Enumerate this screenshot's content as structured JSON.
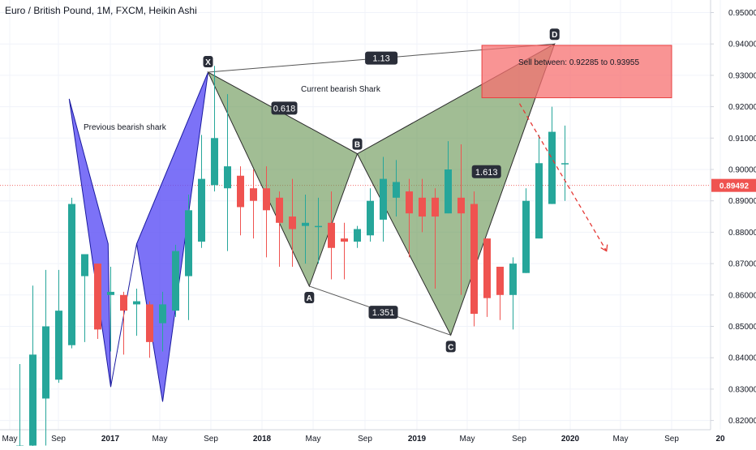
{
  "chart_data": {
    "type": "candlestick",
    "title": "Euro / British Pound, 1M, FXCM, Heikin Ashi",
    "x_labels": [
      "May",
      "Sep",
      "2017",
      "May",
      "Sep",
      "2018",
      "May",
      "Sep",
      "2019",
      "May",
      "Sep",
      "2020",
      "May",
      "Sep",
      "20"
    ],
    "y_labels": [
      "0.95000",
      "0.94000",
      "0.93000",
      "0.92000",
      "0.91000",
      "0.90000",
      "0.89000",
      "0.88000",
      "0.87000",
      "0.86000",
      "0.85000",
      "0.84000",
      "0.83000",
      "0.82000"
    ],
    "ylim": [
      0.8165,
      0.9535
    ],
    "current_price": 0.89492,
    "current_price_label": "0.89492",
    "candles": [
      {
        "t": 0,
        "o": 0.8075,
        "h": 0.838,
        "l": 0.803,
        "c": 0.812
      },
      {
        "t": 1,
        "o": 0.812,
        "h": 0.863,
        "l": 0.811,
        "c": 0.841
      },
      {
        "t": 2,
        "o": 0.827,
        "h": 0.868,
        "l": 0.812,
        "c": 0.85
      },
      {
        "t": 3,
        "o": 0.833,
        "h": 0.868,
        "l": 0.832,
        "c": 0.855
      },
      {
        "t": 4,
        "o": 0.844,
        "h": 0.891,
        "l": 0.843,
        "c": 0.889
      },
      {
        "t": 5,
        "o": 0.866,
        "h": 0.872,
        "l": 0.845,
        "c": 0.873
      },
      {
        "t": 6,
        "o": 0.87,
        "h": 0.87,
        "l": 0.846,
        "c": 0.849
      },
      {
        "t": 7,
        "o": 0.86,
        "h": 0.869,
        "l": 0.842,
        "c": 0.861
      },
      {
        "t": 8,
        "o": 0.86,
        "h": 0.861,
        "l": 0.841,
        "c": 0.855
      },
      {
        "t": 9,
        "o": 0.857,
        "h": 0.862,
        "l": 0.847,
        "c": 0.858
      },
      {
        "t": 10,
        "o": 0.857,
        "h": 0.858,
        "l": 0.84,
        "c": 0.845
      },
      {
        "t": 11,
        "o": 0.851,
        "h": 0.861,
        "l": 0.842,
        "c": 0.857
      },
      {
        "t": 12,
        "o": 0.855,
        "h": 0.876,
        "l": 0.853,
        "c": 0.874
      },
      {
        "t": 13,
        "o": 0.866,
        "h": 0.892,
        "l": 0.852,
        "c": 0.887
      },
      {
        "t": 14,
        "o": 0.877,
        "h": 0.911,
        "l": 0.875,
        "c": 0.897
      },
      {
        "t": 15,
        "o": 0.895,
        "h": 0.933,
        "l": 0.893,
        "c": 0.91
      },
      {
        "t": 16,
        "o": 0.894,
        "h": 0.924,
        "l": 0.874,
        "c": 0.901
      },
      {
        "t": 17,
        "o": 0.898,
        "h": 0.901,
        "l": 0.879,
        "c": 0.888
      },
      {
        "t": 18,
        "o": 0.894,
        "h": 0.9,
        "l": 0.878,
        "c": 0.89
      },
      {
        "t": 19,
        "o": 0.894,
        "h": 0.901,
        "l": 0.872,
        "c": 0.887
      },
      {
        "t": 20,
        "o": 0.891,
        "h": 0.893,
        "l": 0.869,
        "c": 0.883
      },
      {
        "t": 21,
        "o": 0.885,
        "h": 0.897,
        "l": 0.869,
        "c": 0.881
      },
      {
        "t": 22,
        "o": 0.882,
        "h": 0.892,
        "l": 0.87,
        "c": 0.883
      },
      {
        "t": 23,
        "o": 0.882,
        "h": 0.891,
        "l": 0.87,
        "c": 0.882
      },
      {
        "t": 24,
        "o": 0.883,
        "h": 0.893,
        "l": 0.865,
        "c": 0.875
      },
      {
        "t": 25,
        "o": 0.878,
        "h": 0.883,
        "l": 0.865,
        "c": 0.877
      },
      {
        "t": 26,
        "o": 0.877,
        "h": 0.882,
        "l": 0.875,
        "c": 0.881
      },
      {
        "t": 27,
        "o": 0.879,
        "h": 0.894,
        "l": 0.877,
        "c": 0.89
      },
      {
        "t": 28,
        "o": 0.884,
        "h": 0.904,
        "l": 0.877,
        "c": 0.897
      },
      {
        "t": 29,
        "o": 0.891,
        "h": 0.903,
        "l": 0.885,
        "c": 0.896
      },
      {
        "t": 30,
        "o": 0.893,
        "h": 0.897,
        "l": 0.872,
        "c": 0.886
      },
      {
        "t": 31,
        "o": 0.891,
        "h": 0.897,
        "l": 0.88,
        "c": 0.885
      },
      {
        "t": 32,
        "o": 0.891,
        "h": 0.894,
        "l": 0.862,
        "c": 0.885
      },
      {
        "t": 33,
        "o": 0.886,
        "h": 0.909,
        "l": 0.886,
        "c": 0.9
      },
      {
        "t": 34,
        "o": 0.891,
        "h": 0.908,
        "l": 0.86,
        "c": 0.886
      },
      {
        "t": 35,
        "o": 0.889,
        "h": 0.893,
        "l": 0.85,
        "c": 0.854
      },
      {
        "t": 36,
        "o": 0.878,
        "h": 0.878,
        "l": 0.853,
        "c": 0.859
      },
      {
        "t": 37,
        "o": 0.869,
        "h": 0.869,
        "l": 0.852,
        "c": 0.86
      },
      {
        "t": 38,
        "o": 0.86,
        "h": 0.872,
        "l": 0.849,
        "c": 0.87
      },
      {
        "t": 39,
        "o": 0.867,
        "h": 0.894,
        "l": 0.867,
        "c": 0.89
      },
      {
        "t": 40,
        "o": 0.878,
        "h": 0.911,
        "l": 0.878,
        "c": 0.902
      },
      {
        "t": 41,
        "o": 0.889,
        "h": 0.92,
        "l": 0.889,
        "c": 0.912
      },
      {
        "t": 42,
        "o": 0.902,
        "h": 0.914,
        "l": 0.89,
        "c": 0.902
      }
    ],
    "patterns": [
      {
        "name": "Previous bearish shark",
        "points": [
          {
            "t": 3.8,
            "p": 0.9225
          },
          {
            "t": 6.8,
            "p": 0.8763
          },
          {
            "t": 7.0,
            "p": 0.8307
          },
          {
            "t": 9.0,
            "p": 0.8763
          },
          {
            "t": 11.0,
            "p": 0.826
          },
          {
            "t": 14.5,
            "p": 0.931
          }
        ],
        "color": "#6a5cf0"
      },
      {
        "name": "Current bearish Shark",
        "points": [
          {
            "t": 14.5,
            "p": 0.931,
            "label": "X"
          },
          {
            "t": 22.3,
            "p": 0.8628,
            "label": "A"
          },
          {
            "t": 26.0,
            "p": 0.905,
            "label": "B"
          },
          {
            "t": 33.2,
            "p": 0.8472,
            "label": "C"
          },
          {
            "t": 41.2,
            "p": 0.94,
            "label": "D"
          }
        ],
        "color": "#7a9a60"
      }
    ],
    "ratios": [
      "1.13",
      "0.618",
      "1.613",
      "1.351"
    ],
    "annotations": {
      "previous": "Previous bearish shark",
      "current": "Current bearish Shark",
      "sell_zone": "Sell between: 0.92285 to 0.93955",
      "sell_range": [
        0.92285,
        0.93955
      ]
    },
    "projection": {
      "from_t": 38.5,
      "from_p": 0.921,
      "to_t": 45.2,
      "to_p": 0.874
    },
    "colors": {
      "up": "#26a69a",
      "down": "#ef5350",
      "downWick": "#ef5350",
      "prev": "#5b4ff5",
      "curr": "#6f9a5a",
      "sell": "#f77070"
    }
  }
}
